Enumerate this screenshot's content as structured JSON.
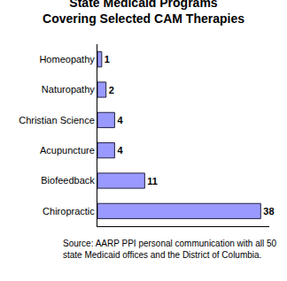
{
  "chart_data": {
    "type": "bar",
    "title": "State Medicaid Programs Covering Selected CAM Therapies",
    "orientation": "horizontal",
    "categories": [
      "Homeopathy",
      "Naturopathy",
      "Christian Science",
      "Acupuncture",
      "Biofeedback",
      "Chiropractic"
    ],
    "values": [
      1,
      2,
      4,
      4,
      11,
      38
    ],
    "color": "#9999ff",
    "xlim": [
      0,
      40
    ],
    "xticks": [],
    "grid": false,
    "data_labels": true,
    "tick_labels": "y",
    "source": "Source: AARP PPI personal communication with all 50 state Medicaid offices and the District of Columbia."
  }
}
